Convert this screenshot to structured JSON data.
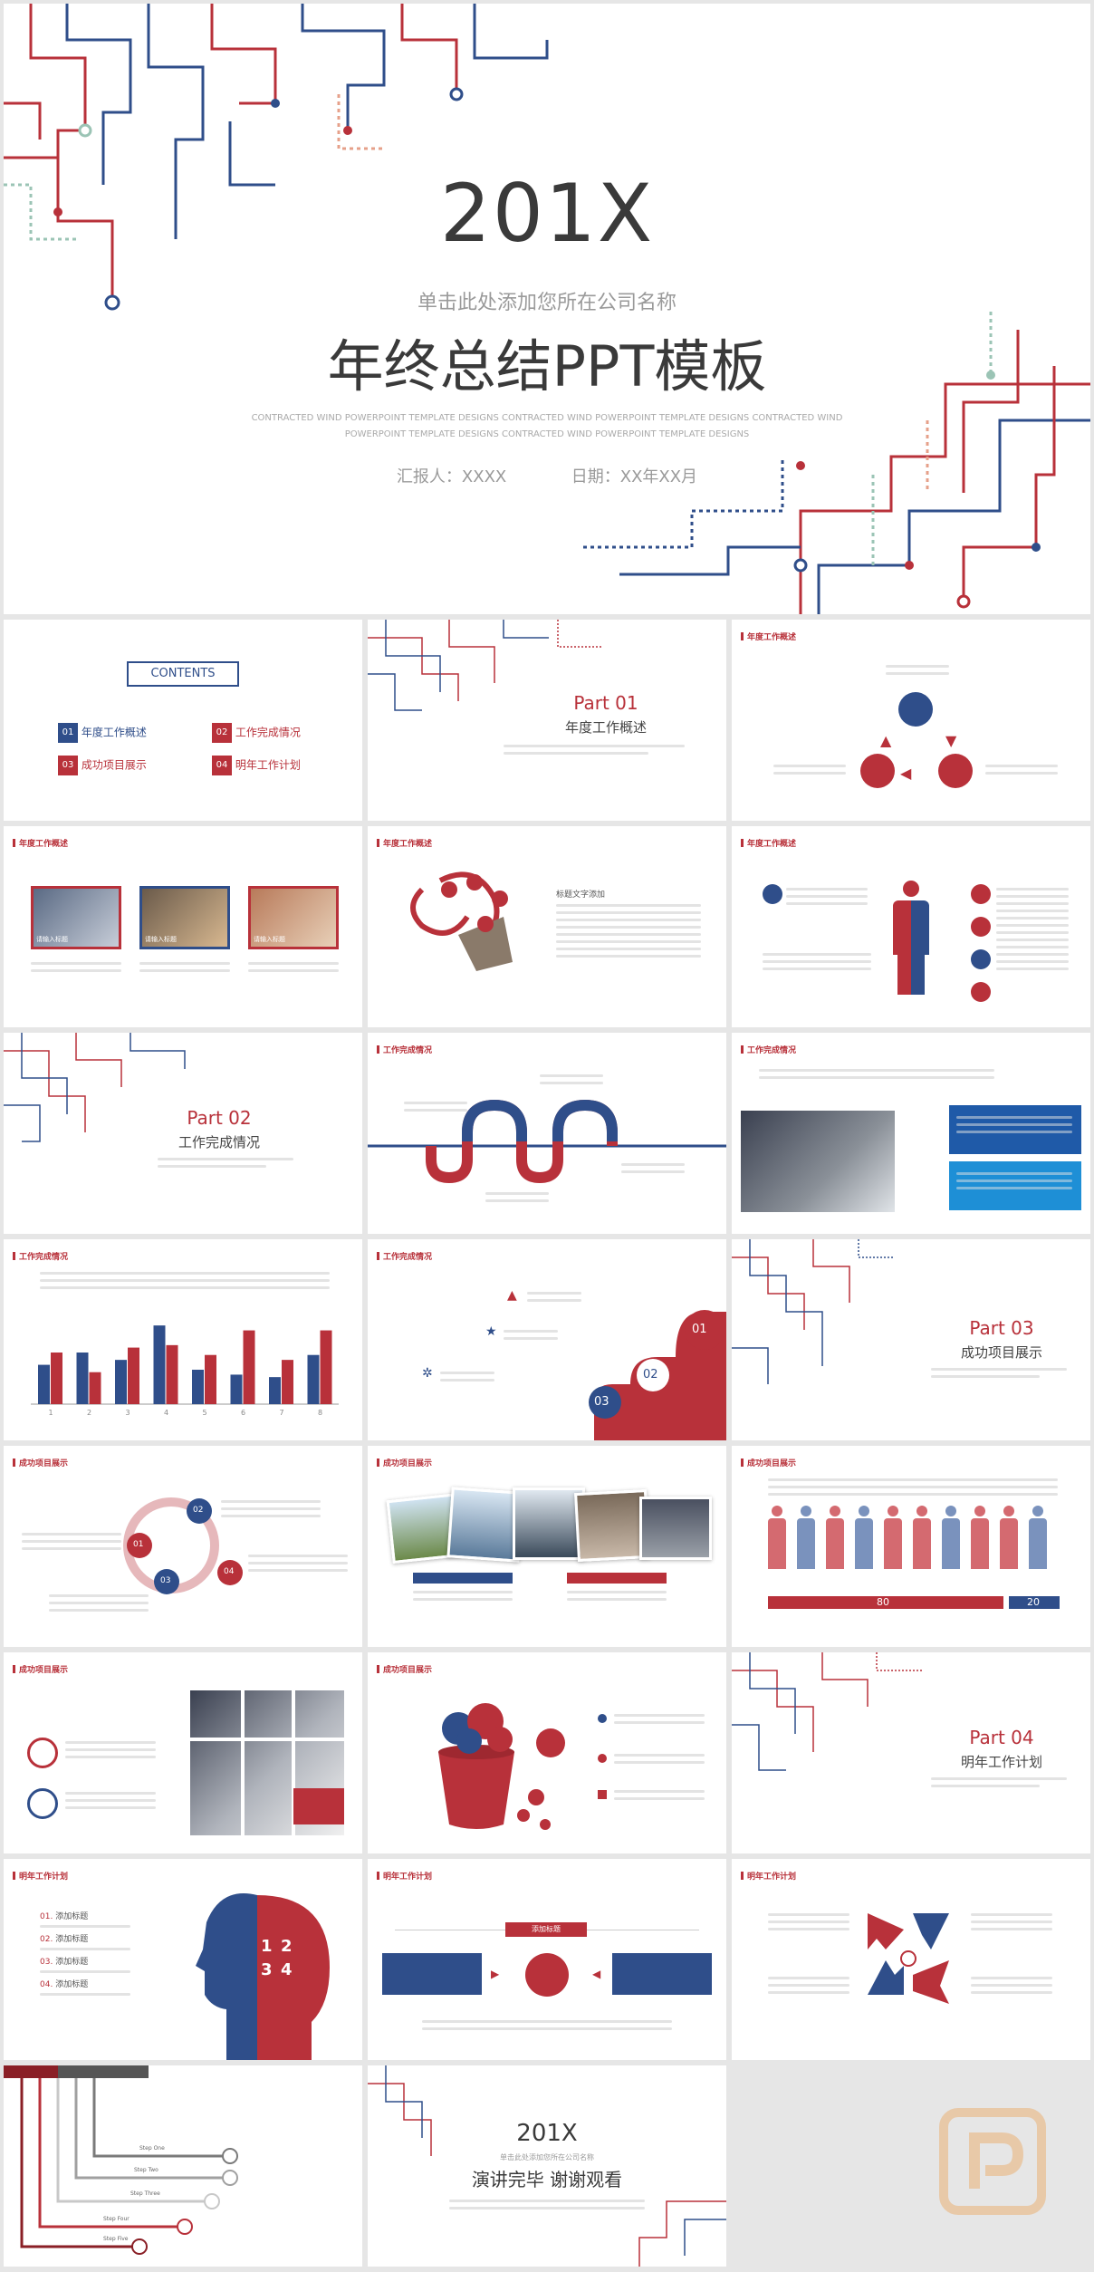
{
  "cover": {
    "year": "201X",
    "company": "单击此处添加您所在公司名称",
    "title": "年终总结PPT模板",
    "subtitle_en_line1": "CONTRACTED WIND POWERPOINT TEMPLATE DESIGNS CONTRACTED WIND POWERPOINT TEMPLATE DESIGNS CONTRACTED WIND",
    "subtitle_en_line2": "POWERPOINT TEMPLATE DESIGNS CONTRACTED WIND POWERPOINT TEMPLATE DESIGNS",
    "reporter": "汇报人：XXXX",
    "date": "日期：XX年XX月"
  },
  "contents": {
    "title": "CONTENTS",
    "items": [
      {
        "num": "01",
        "label": "年度工作概述"
      },
      {
        "num": "02",
        "label": "工作完成情况"
      },
      {
        "num": "03",
        "label": "成功项目展示"
      },
      {
        "num": "04",
        "label": "明年工作计划"
      }
    ]
  },
  "parts": [
    {
      "part": "Part 01",
      "title": "年度工作概述"
    },
    {
      "part": "Part 02",
      "title": "工作完成情况"
    },
    {
      "part": "Part 03",
      "title": "成功项目展示"
    },
    {
      "part": "Part 04",
      "title": "明年工作计划"
    }
  ],
  "section_headers": {
    "s1": "年度工作概述",
    "s2": "工作完成情况",
    "s3": "成功项目展示",
    "s4": "明年工作计划"
  },
  "photo_labels": [
    "请输入标题",
    "请输入标题",
    "请输入标题"
  ],
  "text_title": "标题文字添加",
  "stairs": [
    "01",
    "02",
    "03"
  ],
  "ratio": {
    "left": "80",
    "right": "20"
  },
  "gears": [
    "01",
    "02",
    "03",
    "04"
  ],
  "head_list": [
    {
      "num": "01.",
      "label": "添加标题"
    },
    {
      "num": "02.",
      "label": "添加标题"
    },
    {
      "num": "03.",
      "label": "添加标题"
    },
    {
      "num": "04.",
      "label": "添加标题"
    }
  ],
  "head_numbers": [
    "1",
    "2",
    "3",
    "4"
  ],
  "center_box": "添加标题",
  "steps": [
    "Step One",
    "Step Two",
    "Step Three",
    "Step Four",
    "Step Five"
  ],
  "ending": {
    "year": "201X",
    "company": "单击此处添加您所在公司名称",
    "title": "演讲完毕 谢谢观看"
  },
  "chart_data": {
    "type": "bar",
    "categories": [
      "1",
      "2",
      "3",
      "4",
      "5",
      "6",
      "7",
      "8"
    ],
    "series": [
      {
        "values": [
          32,
          42,
          36,
          64,
          28,
          24,
          22,
          40
        ]
      },
      {
        "values": [
          42,
          26,
          46,
          48,
          40,
          60,
          36,
          60
        ]
      }
    ],
    "ylim": [
      0,
      70
    ]
  },
  "colors": {
    "red": "#b8313a",
    "blue": "#2f4e8a",
    "gray": "#9a9a9a"
  }
}
